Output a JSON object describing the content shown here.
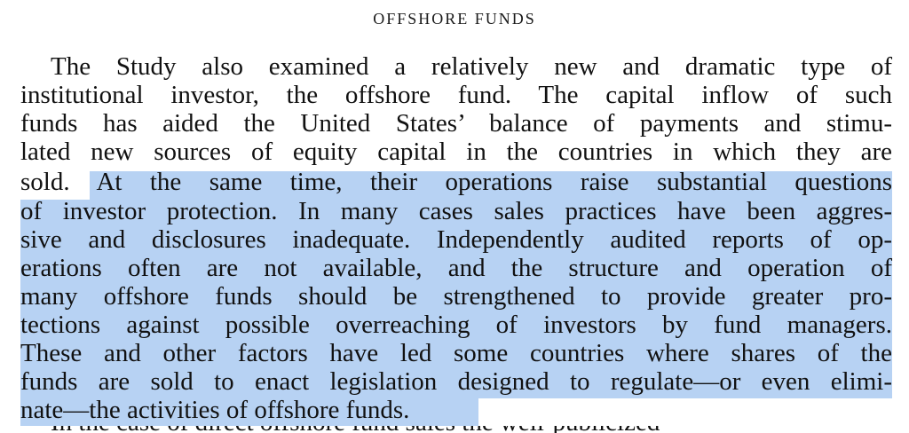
{
  "document": {
    "heading": "OFFSHORE FUNDS",
    "lines": [
      {
        "plain": "The Study also examined a relatively new and dramatic type of",
        "highlighted": ""
      },
      {
        "plain": "institutional investor, the offshore fund. The capital inflow of such",
        "highlighted": ""
      },
      {
        "plain": "funds has aided the United States’ balance of payments and stimu-",
        "highlighted": ""
      },
      {
        "plain": "lated new sources of equity capital in the countries in which they are",
        "highlighted": ""
      },
      {
        "plain": "sold. ",
        "highlighted": "At the same time, their operations raise substantial questions"
      },
      {
        "plain": "",
        "highlighted": "of investor protection. In many cases sales practices have been aggres-"
      },
      {
        "plain": "",
        "highlighted": "sive and disclosures inadequate. Independently audited reports of op-"
      },
      {
        "plain": "",
        "highlighted": "erations often are not available, and the structure and operation of"
      },
      {
        "plain": "",
        "highlighted": "many offshore funds should be strengthened to provide greater pro-"
      },
      {
        "plain": "",
        "highlighted": "tections against possible overreaching of investors by fund managers."
      },
      {
        "plain": "",
        "highlighted": "These and other factors have led some countries where shares of the"
      },
      {
        "plain": "",
        "highlighted": "funds are sold to enact legislation designed to regulate—or even elimi-"
      },
      {
        "plain": "",
        "highlighted": "nate—the activities of offshore funds."
      }
    ],
    "next_line_fragment": "In the case of direct offshore fund sales the well-publicized"
  },
  "colors": {
    "highlight": "#b7d2f3",
    "text": "#111111",
    "background": "#ffffff"
  }
}
